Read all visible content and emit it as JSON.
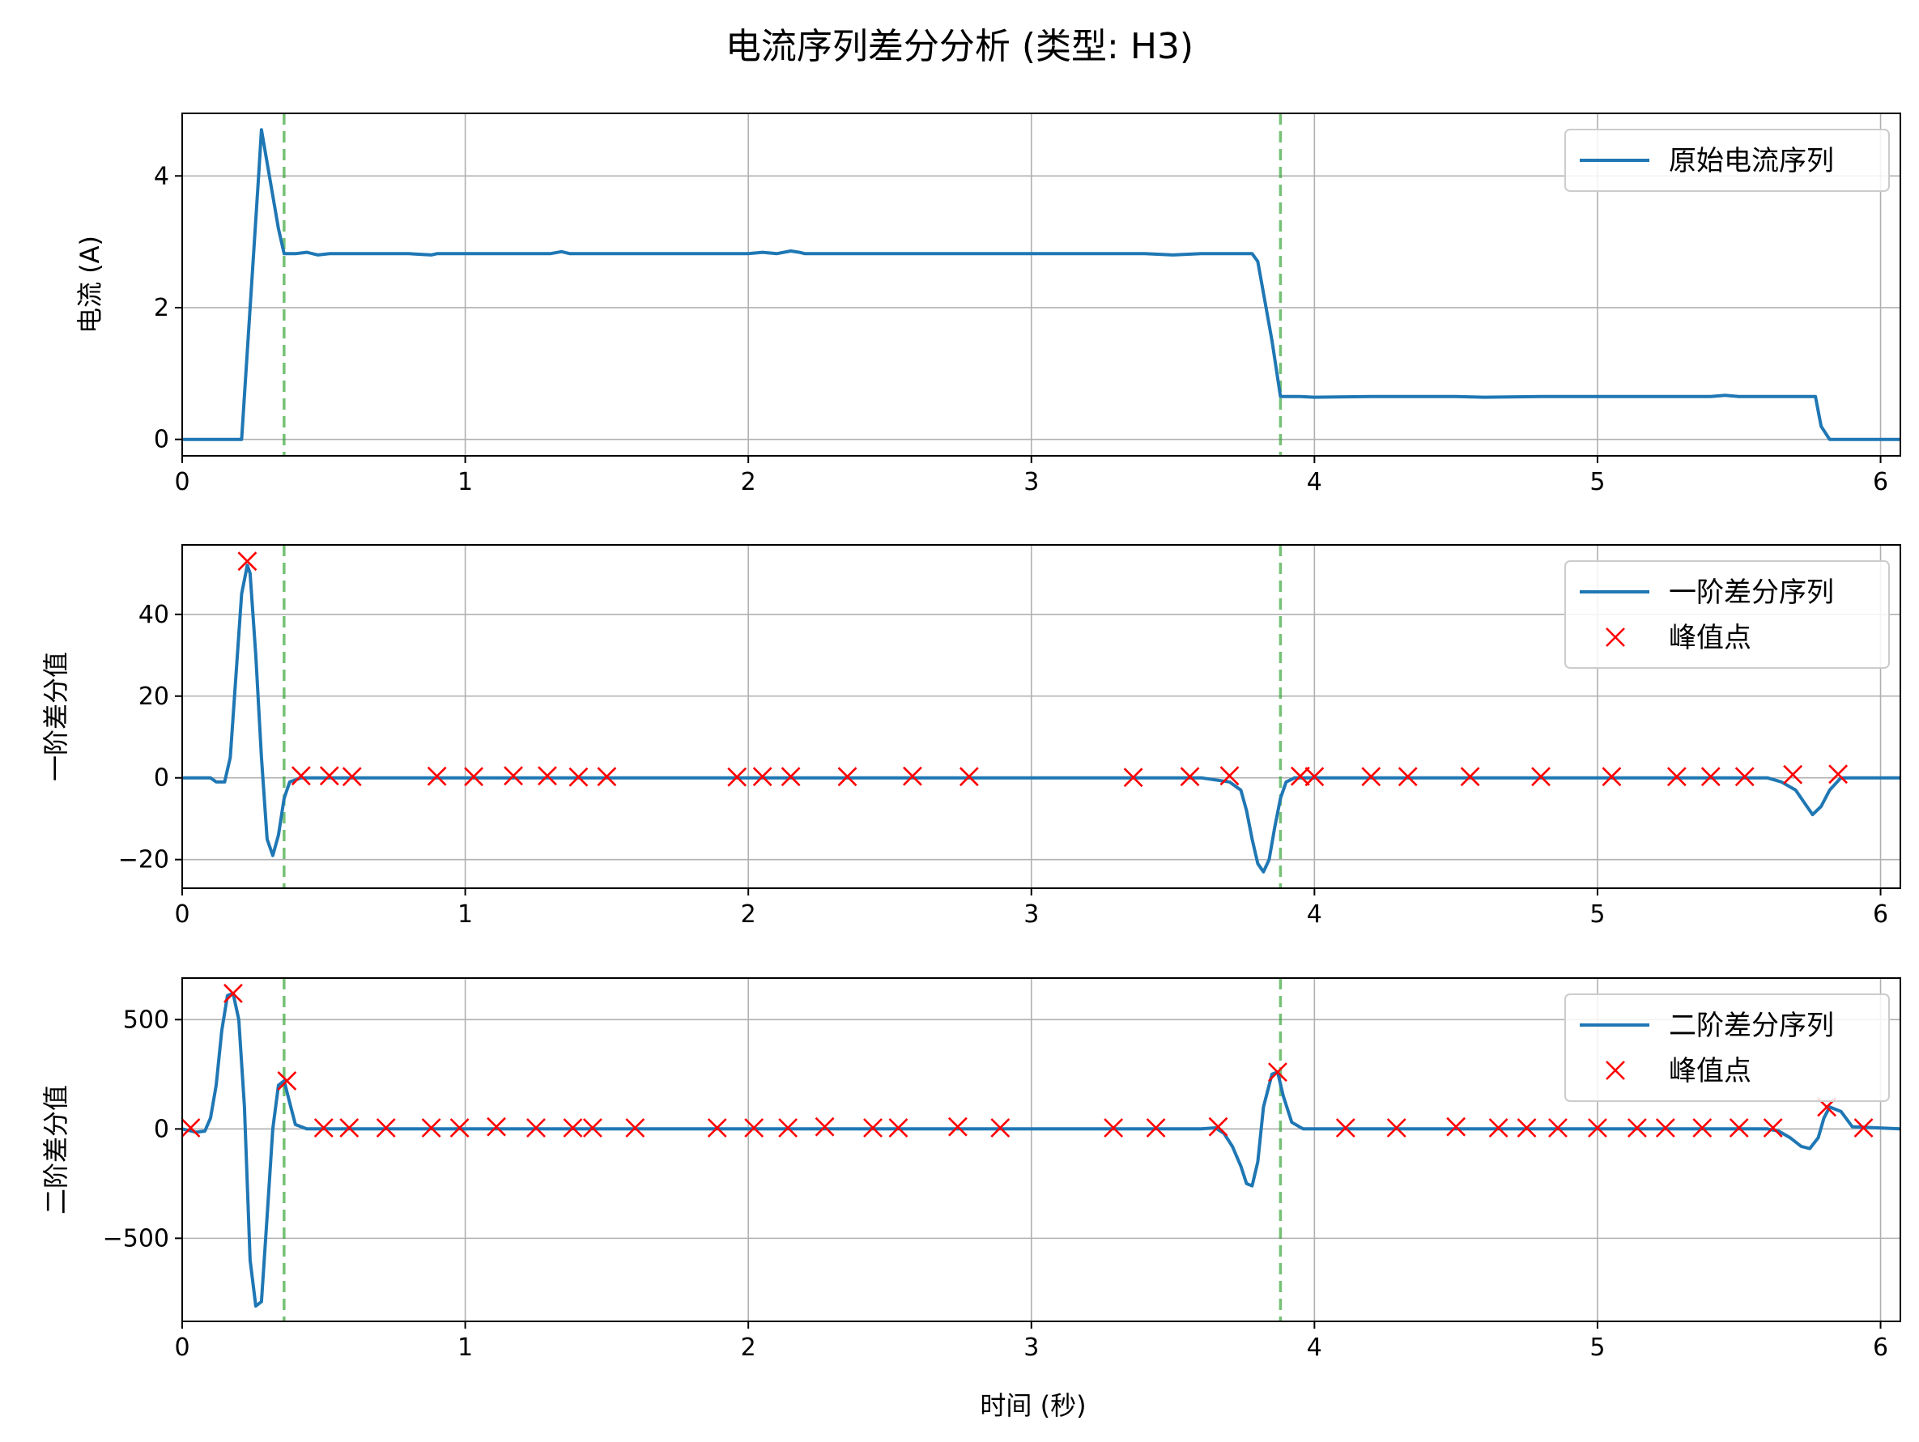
{
  "figure": {
    "title": "电流序列差分分析 (类型: H3)",
    "xlabel": "时间 (秒)"
  },
  "colors": {
    "line": "#1f77b4",
    "peak_marker": "#ff0000",
    "vline": "#2ca02c",
    "grid": "#b0b0b0"
  },
  "chart_data": [
    {
      "type": "line",
      "ylabel": "电流 (A)",
      "xlim": [
        0,
        6.07
      ],
      "ylim": [
        -0.25,
        4.95
      ],
      "xticks": [
        0,
        1,
        2,
        3,
        4,
        5,
        6
      ],
      "yticks": [
        0,
        2,
        4
      ],
      "grid": true,
      "legend_position": "top-right",
      "vlines": [
        0.36,
        3.88
      ],
      "series": [
        {
          "name": "原始电流序列",
          "x": [
            0,
            0.05,
            0.1,
            0.15,
            0.21,
            0.24,
            0.27,
            0.28,
            0.3,
            0.34,
            0.36,
            0.4,
            0.44,
            0.48,
            0.52,
            0.6,
            0.7,
            0.8,
            0.88,
            0.9,
            0.95,
            1.0,
            1.1,
            1.2,
            1.3,
            1.34,
            1.37,
            1.4,
            1.5,
            1.6,
            1.8,
            2.0,
            2.05,
            2.1,
            2.15,
            2.18,
            2.2,
            2.3,
            2.5,
            2.6,
            2.8,
            3.0,
            3.2,
            3.4,
            3.5,
            3.6,
            3.7,
            3.78,
            3.8,
            3.85,
            3.88,
            3.95,
            4.0,
            4.2,
            4.5,
            4.6,
            4.8,
            5.0,
            5.2,
            5.4,
            5.45,
            5.5,
            5.7,
            5.77,
            5.79,
            5.82,
            6.07
          ],
          "y": [
            0,
            0,
            0,
            0,
            0,
            2.0,
            4.0,
            4.7,
            4.2,
            3.2,
            2.82,
            2.82,
            2.84,
            2.8,
            2.82,
            2.82,
            2.82,
            2.82,
            2.8,
            2.82,
            2.82,
            2.82,
            2.82,
            2.82,
            2.82,
            2.85,
            2.82,
            2.82,
            2.82,
            2.82,
            2.82,
            2.82,
            2.84,
            2.82,
            2.86,
            2.84,
            2.82,
            2.82,
            2.82,
            2.82,
            2.82,
            2.82,
            2.82,
            2.82,
            2.8,
            2.82,
            2.82,
            2.82,
            2.7,
            1.5,
            0.65,
            0.65,
            0.64,
            0.65,
            0.65,
            0.64,
            0.65,
            0.65,
            0.65,
            0.65,
            0.67,
            0.65,
            0.65,
            0.65,
            0.2,
            0,
            0
          ]
        }
      ]
    },
    {
      "type": "line",
      "ylabel": "一阶差分值",
      "xlim": [
        0,
        6.07
      ],
      "ylim": [
        -27,
        57
      ],
      "xticks": [
        0,
        1,
        2,
        3,
        4,
        5,
        6
      ],
      "yticks": [
        -20,
        0,
        20,
        40
      ],
      "grid": true,
      "legend_position": "top-right",
      "vlines": [
        0.36,
        3.88
      ],
      "series": [
        {
          "name": "一阶差分序列",
          "x": [
            0,
            0.1,
            0.12,
            0.15,
            0.17,
            0.19,
            0.21,
            0.23,
            0.24,
            0.26,
            0.28,
            0.3,
            0.32,
            0.34,
            0.36,
            0.38,
            0.42,
            0.5,
            1.0,
            2.0,
            3.0,
            3.6,
            3.7,
            3.74,
            3.76,
            3.78,
            3.8,
            3.82,
            3.84,
            3.86,
            3.88,
            3.9,
            3.93,
            3.96,
            4.0,
            5.0,
            5.6,
            5.65,
            5.7,
            5.73,
            5.76,
            5.79,
            5.82,
            5.86,
            5.9,
            6.07
          ],
          "y": [
            0,
            0,
            -1,
            -1,
            5,
            25,
            45,
            52,
            50,
            30,
            5,
            -15,
            -19,
            -14,
            -5,
            -1,
            0,
            0,
            0,
            0,
            0,
            0,
            -1,
            -3,
            -8,
            -15,
            -21,
            -23,
            -20,
            -12,
            -5,
            -1,
            0,
            0,
            0,
            0,
            0,
            -1,
            -3,
            -6,
            -9,
            -7,
            -3,
            0,
            0,
            0
          ]
        },
        {
          "name": "峰值点",
          "marker": "x",
          "x": [
            0.23,
            0.42,
            0.52,
            0.6,
            0.9,
            1.03,
            1.17,
            1.29,
            1.4,
            1.5,
            1.96,
            2.05,
            2.15,
            2.35,
            2.58,
            2.78,
            3.36,
            3.56,
            3.7,
            3.95,
            4.0,
            4.2,
            4.33,
            4.55,
            4.8,
            5.05,
            5.28,
            5.4,
            5.52,
            5.69,
            5.85
          ],
          "y": [
            53,
            0.5,
            0.5,
            0.3,
            0.4,
            0.3,
            0.5,
            0.5,
            0.2,
            0.3,
            0.2,
            0.3,
            0.3,
            0.3,
            0.4,
            0.3,
            0.1,
            0.3,
            0.5,
            0.4,
            0.3,
            0.3,
            0.3,
            0.3,
            0.3,
            0.3,
            0.3,
            0.3,
            0.3,
            0.8,
            0.9
          ]
        }
      ]
    },
    {
      "type": "line",
      "ylabel": "二阶差分值",
      "xlim": [
        0,
        6.07
      ],
      "ylim": [
        -880,
        690
      ],
      "xticks": [
        0,
        1,
        2,
        3,
        4,
        5,
        6
      ],
      "yticks": [
        -500,
        0,
        500
      ],
      "grid": true,
      "legend_position": "top-right",
      "vlines": [
        0.36,
        3.88
      ],
      "series": [
        {
          "name": "二阶差分序列",
          "x": [
            0,
            0.05,
            0.08,
            0.1,
            0.12,
            0.14,
            0.16,
            0.18,
            0.2,
            0.22,
            0.24,
            0.26,
            0.28,
            0.3,
            0.32,
            0.34,
            0.36,
            0.38,
            0.4,
            0.44,
            0.5,
            1.0,
            2.0,
            3.0,
            3.6,
            3.65,
            3.68,
            3.71,
            3.74,
            3.76,
            3.78,
            3.8,
            3.82,
            3.85,
            3.87,
            3.89,
            3.92,
            3.96,
            4.0,
            5.0,
            5.6,
            5.64,
            5.68,
            5.72,
            5.75,
            5.78,
            5.8,
            5.82,
            5.86,
            5.9,
            6.07
          ],
          "y": [
            0,
            -15,
            -10,
            50,
            200,
            450,
            610,
            620,
            500,
            100,
            -600,
            -810,
            -790,
            -400,
            0,
            200,
            220,
            120,
            20,
            0,
            0,
            0,
            0,
            0,
            0,
            5,
            -20,
            -80,
            -170,
            -250,
            -260,
            -150,
            100,
            250,
            260,
            150,
            30,
            0,
            0,
            0,
            0,
            -10,
            -40,
            -80,
            -90,
            -40,
            50,
            100,
            80,
            10,
            0
          ]
        },
        {
          "name": "峰值点",
          "marker": "x",
          "x": [
            0.03,
            0.18,
            0.37,
            0.5,
            0.59,
            0.72,
            0.88,
            0.98,
            1.11,
            1.25,
            1.38,
            1.45,
            1.6,
            1.89,
            2.02,
            2.14,
            2.27,
            2.44,
            2.53,
            2.74,
            2.89,
            3.29,
            3.44,
            3.66,
            3.87,
            4.11,
            4.29,
            4.5,
            4.65,
            4.75,
            4.86,
            5.0,
            5.14,
            5.24,
            5.37,
            5.5,
            5.62,
            5.81,
            5.94
          ],
          "y": [
            5,
            620,
            220,
            5,
            5,
            5,
            5,
            5,
            10,
            5,
            5,
            5,
            5,
            5,
            5,
            5,
            10,
            5,
            5,
            10,
            5,
            5,
            5,
            10,
            260,
            5,
            5,
            10,
            5,
            5,
            5,
            5,
            5,
            5,
            5,
            5,
            5,
            100,
            5
          ]
        }
      ]
    }
  ]
}
